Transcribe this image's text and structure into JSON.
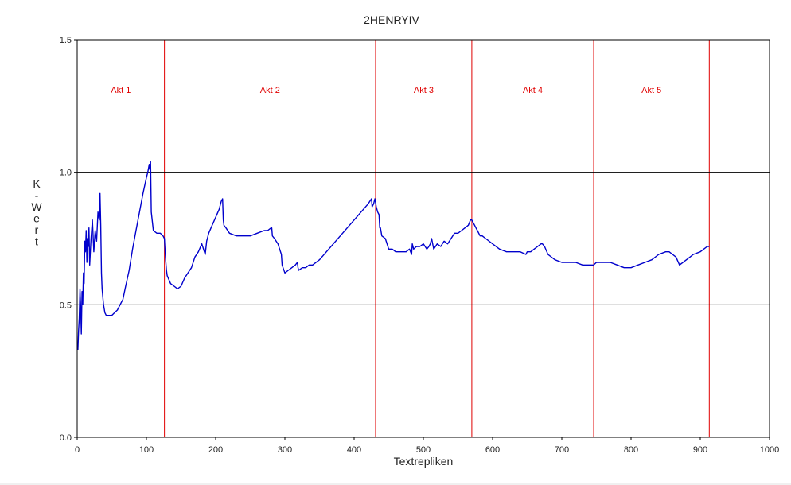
{
  "chart_data": {
    "type": "line",
    "title": "2HENRYIV",
    "xlabel": "Textrepliken",
    "ylabel": "K-Wert",
    "xlim": [
      0,
      1000
    ],
    "ylim": [
      0,
      1.5
    ],
    "x_ticks": [
      "0",
      "100",
      "200",
      "300",
      "400",
      "500",
      "600",
      "700",
      "800",
      "900",
      "1000"
    ],
    "y_ticks": [
      "0.0",
      "0.5",
      "1.0",
      "1.5"
    ],
    "hlines": [
      0.5,
      1.0
    ],
    "grid": false,
    "acts": [
      {
        "label": "Akt 1",
        "start": 0,
        "end": 126
      },
      {
        "label": "Akt 2",
        "start": 126,
        "end": 431
      },
      {
        "label": "Akt 3",
        "start": 431,
        "end": 570
      },
      {
        "label": "Akt 4",
        "start": 570,
        "end": 746
      },
      {
        "label": "Akt 5",
        "start": 746,
        "end": 913
      }
    ],
    "act_color": "#e00000",
    "series": [
      {
        "color": "#0000cc",
        "x": [
          1,
          2,
          3,
          4,
          5,
          6,
          7,
          8,
          9,
          10,
          11,
          12,
          13,
          14,
          15,
          16,
          17,
          18,
          20,
          22,
          24,
          26,
          28,
          30,
          32,
          33,
          34,
          35,
          36,
          38,
          40,
          42,
          44,
          46,
          48,
          50,
          54,
          58,
          62,
          66,
          70,
          75,
          80,
          85,
          90,
          95,
          100,
          102,
          104,
          105,
          106,
          107,
          110,
          115,
          120,
          124,
          126,
          127,
          128,
          129,
          130,
          135,
          140,
          145,
          150,
          155,
          160,
          165,
          170,
          175,
          180,
          185,
          187,
          190,
          195,
          200,
          205,
          208,
          210,
          211,
          212,
          215,
          220,
          230,
          240,
          250,
          260,
          270,
          275,
          280,
          281,
          282,
          285,
          290,
          295,
          296,
          300,
          305,
          310,
          315,
          318,
          319,
          320,
          325,
          330,
          335,
          340,
          350,
          360,
          370,
          380,
          390,
          400,
          410,
          420,
          425,
          426,
          428,
          430,
          432,
          434,
          436,
          437,
          438,
          440,
          445,
          450,
          455,
          460,
          465,
          470,
          475,
          480,
          483,
          484,
          486,
          490,
          495,
          500,
          505,
          508,
          510,
          512,
          515,
          520,
          525,
          530,
          535,
          540,
          545,
          550,
          555,
          560,
          565,
          568,
          570,
          572,
          574,
          576,
          578,
          580,
          582,
          585,
          590,
          600,
          610,
          620,
          630,
          640,
          648,
          650,
          655,
          660,
          665,
          670,
          672,
          675,
          680,
          690,
          700,
          710,
          720,
          730,
          740,
          746,
          750,
          755,
          760,
          770,
          780,
          790,
          795,
          800,
          810,
          820,
          830,
          840,
          850,
          855,
          860,
          865,
          870,
          880,
          890,
          900,
          905,
          910,
          913
        ],
        "y": [
          0.33,
          0.4,
          0.45,
          0.56,
          0.5,
          0.39,
          0.55,
          0.5,
          0.62,
          0.58,
          0.74,
          0.7,
          0.78,
          0.66,
          0.75,
          0.72,
          0.79,
          0.65,
          0.75,
          0.82,
          0.7,
          0.78,
          0.74,
          0.85,
          0.82,
          0.92,
          0.8,
          0.62,
          0.56,
          0.5,
          0.47,
          0.46,
          0.46,
          0.46,
          0.46,
          0.46,
          0.47,
          0.48,
          0.5,
          0.52,
          0.57,
          0.63,
          0.71,
          0.78,
          0.85,
          0.92,
          0.98,
          1.0,
          1.03,
          1.01,
          1.04,
          0.85,
          0.78,
          0.77,
          0.77,
          0.76,
          0.75,
          0.7,
          0.66,
          0.63,
          0.61,
          0.58,
          0.57,
          0.56,
          0.57,
          0.6,
          0.62,
          0.64,
          0.68,
          0.7,
          0.73,
          0.69,
          0.74,
          0.77,
          0.8,
          0.83,
          0.86,
          0.89,
          0.9,
          0.82,
          0.8,
          0.79,
          0.77,
          0.76,
          0.76,
          0.76,
          0.77,
          0.78,
          0.78,
          0.79,
          0.79,
          0.76,
          0.75,
          0.73,
          0.69,
          0.65,
          0.62,
          0.63,
          0.64,
          0.65,
          0.66,
          0.64,
          0.63,
          0.64,
          0.64,
          0.65,
          0.65,
          0.67,
          0.7,
          0.73,
          0.76,
          0.79,
          0.82,
          0.85,
          0.88,
          0.9,
          0.87,
          0.88,
          0.9,
          0.87,
          0.85,
          0.84,
          0.79,
          0.79,
          0.76,
          0.75,
          0.71,
          0.71,
          0.7,
          0.7,
          0.7,
          0.7,
          0.71,
          0.69,
          0.73,
          0.71,
          0.72,
          0.72,
          0.73,
          0.71,
          0.72,
          0.73,
          0.75,
          0.71,
          0.73,
          0.72,
          0.74,
          0.73,
          0.75,
          0.77,
          0.77,
          0.78,
          0.79,
          0.8,
          0.82,
          0.82,
          0.81,
          0.8,
          0.79,
          0.78,
          0.77,
          0.76,
          0.76,
          0.75,
          0.73,
          0.71,
          0.7,
          0.7,
          0.7,
          0.69,
          0.7,
          0.7,
          0.71,
          0.72,
          0.73,
          0.73,
          0.72,
          0.69,
          0.67,
          0.66,
          0.66,
          0.66,
          0.65,
          0.65,
          0.65,
          0.66,
          0.66,
          0.66,
          0.66,
          0.65,
          0.64,
          0.64,
          0.64,
          0.65,
          0.66,
          0.67,
          0.69,
          0.7,
          0.7,
          0.69,
          0.68,
          0.65,
          0.67,
          0.69,
          0.7,
          0.71,
          0.72,
          0.72
        ]
      }
    ]
  }
}
